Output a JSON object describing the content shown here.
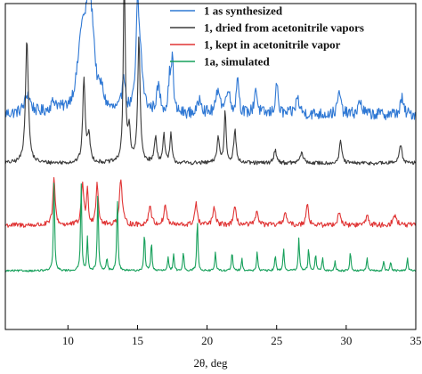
{
  "chart_data": {
    "type": "line",
    "xlabel": "2θ, deg",
    "ylabel": "",
    "xlim": [
      5.5,
      35
    ],
    "xticks": [
      10,
      15,
      20,
      25,
      30,
      35
    ],
    "y_axis_labeled": false,
    "grid": false,
    "legend_position": "top-right",
    "series": [
      {
        "name": "1 as synthesized",
        "color": "#2f78d4",
        "baseline": 0.66,
        "noise": 0.018,
        "peaks": [
          [
            7.1,
            0.06,
            0.25
          ],
          [
            9.0,
            0.03,
            0.3
          ],
          [
            11.0,
            0.22,
            0.35
          ],
          [
            11.5,
            0.3,
            0.25
          ],
          [
            11.8,
            0.12,
            0.2
          ],
          [
            12.4,
            0.05,
            0.2
          ],
          [
            14.0,
            0.12,
            0.12
          ],
          [
            15.0,
            0.28,
            0.12
          ],
          [
            15.2,
            0.15,
            0.2
          ],
          [
            16.5,
            0.08,
            0.15
          ],
          [
            17.3,
            0.1,
            0.1
          ],
          [
            17.5,
            0.18,
            0.08
          ],
          [
            19.5,
            0.05,
            0.15
          ],
          [
            20.8,
            0.08,
            0.15
          ],
          [
            21.5,
            0.08,
            0.15
          ],
          [
            22.2,
            0.12,
            0.1
          ],
          [
            23.5,
            0.08,
            0.12
          ],
          [
            25.0,
            0.1,
            0.1
          ],
          [
            26.5,
            0.05,
            0.15
          ],
          [
            29.5,
            0.07,
            0.12
          ],
          [
            31.0,
            0.04,
            0.15
          ],
          [
            34.0,
            0.05,
            0.12
          ]
        ]
      },
      {
        "name": "1, dried from acetonitrile vapors",
        "color": "#3a3a3a",
        "baseline": 0.51,
        "noise": 0.006,
        "peaks": [
          [
            7.05,
            0.38,
            0.12
          ],
          [
            11.15,
            0.26,
            0.1
          ],
          [
            11.5,
            0.08,
            0.12
          ],
          [
            14.05,
            0.6,
            0.08
          ],
          [
            14.4,
            0.1,
            0.1
          ],
          [
            15.1,
            0.38,
            0.1
          ],
          [
            16.3,
            0.08,
            0.1
          ],
          [
            16.9,
            0.09,
            0.08
          ],
          [
            17.4,
            0.09,
            0.08
          ],
          [
            20.8,
            0.08,
            0.1
          ],
          [
            21.3,
            0.16,
            0.08
          ],
          [
            22.0,
            0.1,
            0.1
          ],
          [
            24.9,
            0.04,
            0.12
          ],
          [
            26.8,
            0.03,
            0.15
          ],
          [
            29.6,
            0.07,
            0.1
          ],
          [
            33.9,
            0.06,
            0.12
          ]
        ]
      },
      {
        "name": "1, kept in acetonitrile vapor",
        "color": "#e03434",
        "baseline": 0.32,
        "noise": 0.008,
        "peaks": [
          [
            9.0,
            0.14,
            0.1
          ],
          [
            11.05,
            0.13,
            0.1
          ],
          [
            11.4,
            0.1,
            0.08
          ],
          [
            12.1,
            0.13,
            0.1
          ],
          [
            13.8,
            0.14,
            0.12
          ],
          [
            15.9,
            0.06,
            0.12
          ],
          [
            17.0,
            0.06,
            0.12
          ],
          [
            19.2,
            0.07,
            0.1
          ],
          [
            20.5,
            0.05,
            0.12
          ],
          [
            22.0,
            0.05,
            0.12
          ],
          [
            23.6,
            0.04,
            0.12
          ],
          [
            25.6,
            0.04,
            0.12
          ],
          [
            27.2,
            0.07,
            0.1
          ],
          [
            29.5,
            0.04,
            0.12
          ],
          [
            31.5,
            0.03,
            0.12
          ],
          [
            33.5,
            0.03,
            0.15
          ]
        ]
      },
      {
        "name": "1a, simulated",
        "color": "#17a05b",
        "baseline": 0.18,
        "noise": 0.003,
        "peaks": [
          [
            9.0,
            0.28,
            0.05
          ],
          [
            10.95,
            0.27,
            0.05
          ],
          [
            11.4,
            0.1,
            0.05
          ],
          [
            12.15,
            0.24,
            0.05
          ],
          [
            12.8,
            0.04,
            0.05
          ],
          [
            13.55,
            0.23,
            0.05
          ],
          [
            15.5,
            0.12,
            0.05
          ],
          [
            16.0,
            0.09,
            0.05
          ],
          [
            17.2,
            0.04,
            0.05
          ],
          [
            17.6,
            0.05,
            0.05
          ],
          [
            18.3,
            0.06,
            0.05
          ],
          [
            19.3,
            0.16,
            0.05
          ],
          [
            20.6,
            0.06,
            0.05
          ],
          [
            21.8,
            0.06,
            0.05
          ],
          [
            22.5,
            0.04,
            0.05
          ],
          [
            23.6,
            0.06,
            0.05
          ],
          [
            24.9,
            0.05,
            0.05
          ],
          [
            25.5,
            0.07,
            0.05
          ],
          [
            26.6,
            0.1,
            0.05
          ],
          [
            27.3,
            0.07,
            0.05
          ],
          [
            27.8,
            0.05,
            0.05
          ],
          [
            28.3,
            0.04,
            0.05
          ],
          [
            29.2,
            0.03,
            0.05
          ],
          [
            30.3,
            0.06,
            0.05
          ],
          [
            31.5,
            0.04,
            0.05
          ],
          [
            32.7,
            0.03,
            0.05
          ],
          [
            33.2,
            0.03,
            0.05
          ],
          [
            34.4,
            0.04,
            0.05
          ]
        ]
      }
    ]
  }
}
